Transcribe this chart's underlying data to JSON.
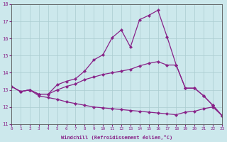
{
  "xlabel": "Windchill (Refroidissement éolien,°C)",
  "bg_color": "#cce8ec",
  "line_color": "#882288",
  "grid_color": "#aaccd0",
  "xlim": [
    0,
    23
  ],
  "ylim": [
    11,
    18
  ],
  "yticks": [
    11,
    12,
    13,
    14,
    15,
    16,
    17,
    18
  ],
  "xticks": [
    0,
    1,
    2,
    3,
    4,
    5,
    6,
    7,
    8,
    9,
    10,
    11,
    12,
    13,
    14,
    15,
    16,
    17,
    18,
    19,
    20,
    21,
    22,
    23
  ],
  "curves": [
    {
      "x": [
        0,
        1,
        2,
        3,
        4,
        5,
        6,
        7,
        8,
        9,
        10,
        11,
        12,
        13,
        14,
        15,
        16,
        17,
        18,
        19,
        20,
        21,
        22,
        23
      ],
      "y": [
        13.2,
        12.9,
        13.0,
        12.75,
        12.75,
        13.3,
        13.5,
        13.65,
        14.1,
        14.75,
        15.05,
        16.05,
        16.5,
        15.5,
        17.1,
        17.35,
        17.65,
        16.1,
        14.45,
        13.1,
        13.1,
        12.65,
        12.1,
        11.5
      ]
    },
    {
      "x": [
        0,
        1,
        2,
        3,
        4,
        5,
        6,
        7,
        8,
        9,
        10,
        11,
        12,
        13,
        14,
        15,
        16,
        17,
        18,
        19,
        20,
        21,
        22,
        23
      ],
      "y": [
        13.2,
        12.9,
        13.0,
        12.75,
        12.75,
        13.0,
        13.2,
        13.35,
        13.6,
        13.75,
        13.9,
        14.0,
        14.1,
        14.2,
        14.4,
        14.55,
        14.65,
        14.45,
        14.45,
        13.1,
        13.1,
        12.65,
        12.1,
        11.5
      ]
    },
    {
      "x": [
        0,
        1,
        2,
        3,
        4,
        5,
        6,
        7,
        8,
        9,
        10,
        11,
        12,
        13,
        14,
        15,
        16,
        17,
        18,
        19,
        20,
        21,
        22,
        23
      ],
      "y": [
        13.2,
        12.9,
        13.0,
        12.65,
        12.55,
        12.45,
        12.3,
        12.2,
        12.1,
        12.0,
        11.95,
        11.9,
        11.85,
        11.8,
        11.75,
        11.7,
        11.65,
        11.6,
        11.55,
        11.7,
        11.75,
        11.9,
        12.0,
        11.5
      ]
    }
  ]
}
